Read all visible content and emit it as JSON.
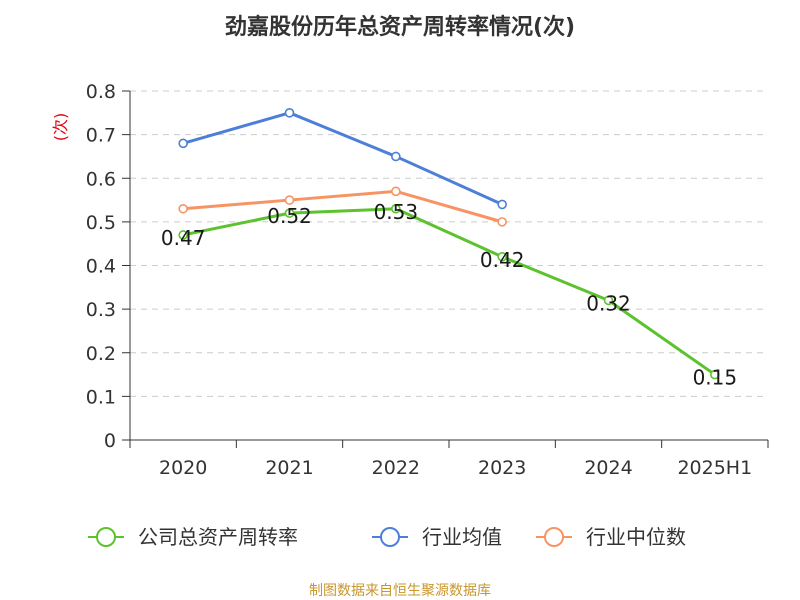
{
  "title": "劲嘉股份历年总资产周转率情况(次)",
  "unit_label": "(次)",
  "source": "制图数据来自恒生聚源数据库",
  "colors": {
    "company": "#5cc22e",
    "industry_avg": "#4d7fd9",
    "industry_median": "#f79463",
    "grid": "#cccccc",
    "axis": "#333333",
    "source": "#c9962a"
  },
  "chart_data": {
    "type": "line",
    "categories": [
      "2020",
      "2021",
      "2022",
      "2023",
      "2024",
      "2025H1"
    ],
    "ylim": [
      0,
      0.8
    ],
    "yticks": [
      "0",
      "0.1",
      "0.2",
      "0.3",
      "0.4",
      "0.5",
      "0.6",
      "0.7",
      "0.8"
    ],
    "grid": true,
    "legend_position": "bottom",
    "series": [
      {
        "name": "公司总资产周转率",
        "color_key": "company",
        "values": [
          0.47,
          0.52,
          0.53,
          0.42,
          0.32,
          0.15
        ],
        "labels": [
          "0.47",
          "0.52",
          "0.53",
          "0.42",
          "0.32",
          "0.15"
        ]
      },
      {
        "name": "行业均值",
        "color_key": "industry_avg",
        "values": [
          0.68,
          0.75,
          0.65,
          0.54,
          null,
          null
        ]
      },
      {
        "name": "行业中位数",
        "color_key": "industry_median",
        "values": [
          0.53,
          0.55,
          0.57,
          0.5,
          null,
          null
        ]
      }
    ]
  }
}
